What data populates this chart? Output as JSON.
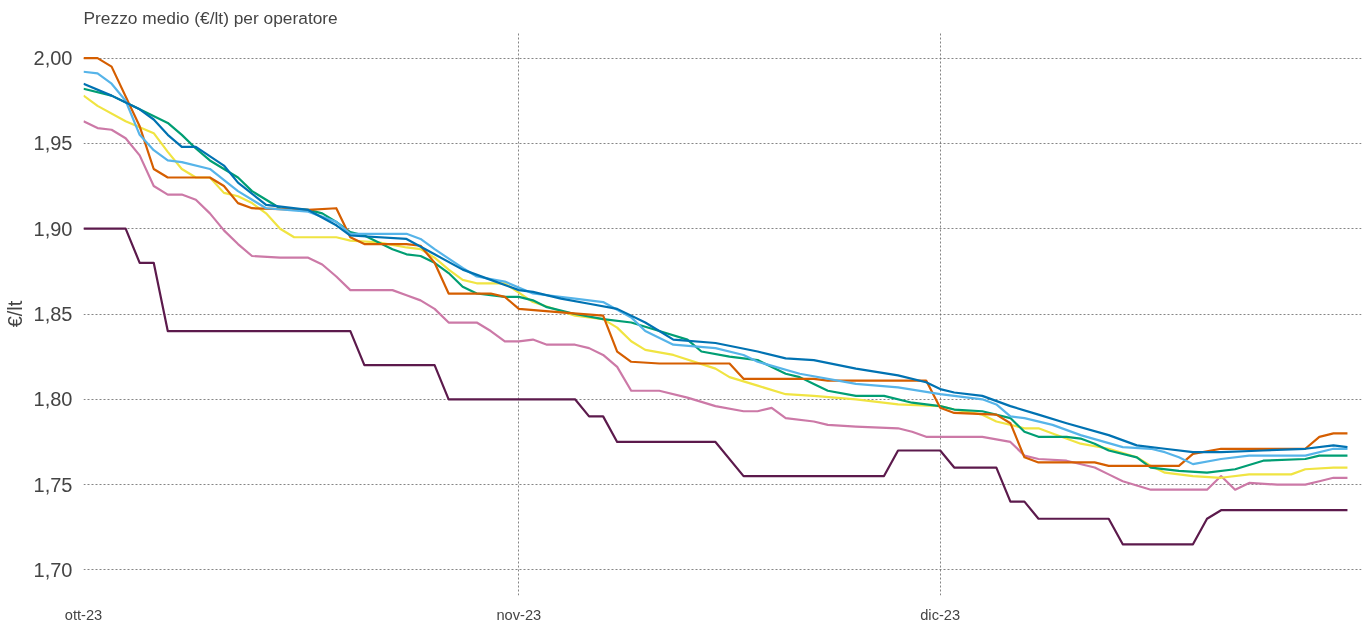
{
  "chart_data": {
    "type": "line",
    "title": "Prezzo medio (€/lt) per operatore",
    "ylabel": "€/lt",
    "xlim": [
      "2023-10-01",
      "2023-12-31"
    ],
    "ylim": [
      1.685,
      2.015
    ],
    "xticks": [
      {
        "value": "2023-10-01",
        "label": "ott-23"
      },
      {
        "value": "2023-11-01",
        "label": "nov-23"
      },
      {
        "value": "2023-12-01",
        "label": "dic-23"
      }
    ],
    "yticks": [
      {
        "value": 1.7,
        "label": "1,70"
      },
      {
        "value": 1.75,
        "label": "1,75"
      },
      {
        "value": 1.8,
        "label": "1,80"
      },
      {
        "value": 1.85,
        "label": "1,85"
      },
      {
        "value": 1.9,
        "label": "1,90"
      },
      {
        "value": 1.95,
        "label": "1,95"
      },
      {
        "value": 2.0,
        "label": "2,00"
      }
    ],
    "grid": true,
    "series": [
      {
        "color": "#5c1a4c",
        "x": [
          "2023-10-01",
          "2023-10-04",
          "2023-10-05",
          "2023-10-06",
          "2023-10-07",
          "2023-10-20",
          "2023-10-21",
          "2023-10-26",
          "2023-10-27",
          "2023-11-05",
          "2023-11-06",
          "2023-11-07",
          "2023-11-08",
          "2023-11-15",
          "2023-11-17",
          "2023-11-27",
          "2023-11-28",
          "2023-12-01",
          "2023-12-02",
          "2023-12-05",
          "2023-12-06",
          "2023-12-07",
          "2023-12-08",
          "2023-12-13",
          "2023-12-14",
          "2023-12-19",
          "2023-12-20",
          "2023-12-21",
          "2023-12-30"
        ],
        "values": [
          1.9,
          1.9,
          1.88,
          1.88,
          1.84,
          1.84,
          1.82,
          1.82,
          1.8,
          1.8,
          1.79,
          1.79,
          1.775,
          1.775,
          1.755,
          1.755,
          1.77,
          1.77,
          1.76,
          1.76,
          1.74,
          1.74,
          1.73,
          1.73,
          1.715,
          1.715,
          1.73,
          1.735,
          1.735
        ]
      },
      {
        "color": "#cc79a7",
        "x": [
          "2023-10-01",
          "2023-10-02",
          "2023-10-03",
          "2023-10-04",
          "2023-10-05",
          "2023-10-06",
          "2023-10-07",
          "2023-10-08",
          "2023-10-09",
          "2023-10-10",
          "2023-10-11",
          "2023-10-12",
          "2023-10-13",
          "2023-10-15",
          "2023-10-17",
          "2023-10-18",
          "2023-10-19",
          "2023-10-20",
          "2023-10-23",
          "2023-10-24",
          "2023-10-25",
          "2023-10-26",
          "2023-10-27",
          "2023-10-29",
          "2023-10-30",
          "2023-10-31",
          "2023-11-01",
          "2023-11-02",
          "2023-11-03",
          "2023-11-05",
          "2023-11-06",
          "2023-11-07",
          "2023-11-08",
          "2023-11-09",
          "2023-11-11",
          "2023-11-13",
          "2023-11-15",
          "2023-11-17",
          "2023-11-18",
          "2023-11-19",
          "2023-11-20",
          "2023-11-22",
          "2023-11-23",
          "2023-11-25",
          "2023-11-28",
          "2023-11-29",
          "2023-11-30",
          "2023-12-04",
          "2023-12-06",
          "2023-12-07",
          "2023-12-08",
          "2023-12-10",
          "2023-12-12",
          "2023-12-13",
          "2023-12-14",
          "2023-12-16",
          "2023-12-18",
          "2023-12-20",
          "2023-12-21",
          "2023-12-22",
          "2023-12-23",
          "2023-12-25",
          "2023-12-27",
          "2023-12-28",
          "2023-12-29",
          "2023-12-30"
        ],
        "values": [
          1.963,
          1.959,
          1.958,
          1.953,
          1.943,
          1.925,
          1.92,
          1.92,
          1.917,
          1.909,
          1.899,
          1.891,
          1.884,
          1.883,
          1.883,
          1.879,
          1.872,
          1.864,
          1.864,
          1.861,
          1.858,
          1.853,
          1.845,
          1.845,
          1.84,
          1.834,
          1.834,
          1.835,
          1.832,
          1.832,
          1.83,
          1.826,
          1.819,
          1.805,
          1.805,
          1.801,
          1.796,
          1.793,
          1.793,
          1.795,
          1.789,
          1.787,
          1.785,
          1.784,
          1.783,
          1.781,
          1.778,
          1.778,
          1.775,
          1.767,
          1.765,
          1.764,
          1.76,
          1.756,
          1.752,
          1.747,
          1.747,
          1.747,
          1.755,
          1.747,
          1.751,
          1.75,
          1.75,
          1.752,
          1.754,
          1.754
        ]
      },
      {
        "color": "#f0e442",
        "x": [
          "2023-10-01",
          "2023-10-02",
          "2023-10-04",
          "2023-10-06",
          "2023-10-07",
          "2023-10-08",
          "2023-10-09",
          "2023-10-10",
          "2023-10-11",
          "2023-10-12",
          "2023-10-13",
          "2023-10-14",
          "2023-10-15",
          "2023-10-16",
          "2023-10-19",
          "2023-10-20",
          "2023-10-22",
          "2023-10-24",
          "2023-10-25",
          "2023-10-26",
          "2023-10-27",
          "2023-10-28",
          "2023-10-29",
          "2023-10-31",
          "2023-11-02",
          "2023-11-05",
          "2023-11-07",
          "2023-11-08",
          "2023-11-09",
          "2023-11-10",
          "2023-11-12",
          "2023-11-15",
          "2023-11-16",
          "2023-11-18",
          "2023-11-20",
          "2023-11-22",
          "2023-11-25",
          "2023-11-28",
          "2023-12-01",
          "2023-12-02",
          "2023-12-04",
          "2023-12-05",
          "2023-12-07",
          "2023-12-08",
          "2023-12-09",
          "2023-12-11",
          "2023-12-13",
          "2023-12-15",
          "2023-12-16",
          "2023-12-17",
          "2023-12-19",
          "2023-12-21",
          "2023-12-23",
          "2023-12-26",
          "2023-12-27",
          "2023-12-29",
          "2023-12-30"
        ],
        "values": [
          1.978,
          1.972,
          1.963,
          1.956,
          1.945,
          1.935,
          1.93,
          1.93,
          1.921,
          1.919,
          1.915,
          1.909,
          1.9,
          1.895,
          1.895,
          1.893,
          1.892,
          1.889,
          1.888,
          1.883,
          1.876,
          1.87,
          1.868,
          1.868,
          1.857,
          1.849,
          1.847,
          1.842,
          1.834,
          1.829,
          1.826,
          1.818,
          1.813,
          1.808,
          1.803,
          1.802,
          1.8,
          1.797,
          1.796,
          1.794,
          1.791,
          1.787,
          1.783,
          1.783,
          1.78,
          1.774,
          1.771,
          1.766,
          1.761,
          1.757,
          1.755,
          1.754,
          1.756,
          1.756,
          1.759,
          1.76,
          1.76
        ]
      },
      {
        "color": "#009e73",
        "x": [
          "2023-10-01",
          "2023-10-03",
          "2023-10-05",
          "2023-10-07",
          "2023-10-08",
          "2023-10-09",
          "2023-10-10",
          "2023-10-12",
          "2023-10-13",
          "2023-10-15",
          "2023-10-17",
          "2023-10-18",
          "2023-10-19",
          "2023-10-20",
          "2023-10-21",
          "2023-10-23",
          "2023-10-24",
          "2023-10-25",
          "2023-10-26",
          "2023-10-27",
          "2023-10-28",
          "2023-10-29",
          "2023-10-31",
          "2023-11-01",
          "2023-11-02",
          "2023-11-03",
          "2023-11-05",
          "2023-11-07",
          "2023-11-09",
          "2023-11-11",
          "2023-11-13",
          "2023-11-14",
          "2023-11-16",
          "2023-11-18",
          "2023-11-20",
          "2023-11-21",
          "2023-11-22",
          "2023-11-23",
          "2023-11-25",
          "2023-11-27",
          "2023-11-29",
          "2023-12-01",
          "2023-12-02",
          "2023-12-04",
          "2023-12-06",
          "2023-12-07",
          "2023-12-08",
          "2023-12-10",
          "2023-12-11",
          "2023-12-12",
          "2023-12-13",
          "2023-12-15",
          "2023-12-16",
          "2023-12-18",
          "2023-12-20",
          "2023-12-22",
          "2023-12-24",
          "2023-12-27",
          "2023-12-28",
          "2023-12-30"
        ],
        "values": [
          1.982,
          1.978,
          1.97,
          1.962,
          1.955,
          1.947,
          1.94,
          1.93,
          1.922,
          1.912,
          1.911,
          1.909,
          1.904,
          1.898,
          1.896,
          1.888,
          1.885,
          1.884,
          1.88,
          1.874,
          1.866,
          1.862,
          1.86,
          1.86,
          1.858,
          1.854,
          1.85,
          1.847,
          1.845,
          1.84,
          1.835,
          1.828,
          1.825,
          1.823,
          1.815,
          1.813,
          1.809,
          1.805,
          1.802,
          1.802,
          1.798,
          1.796,
          1.794,
          1.793,
          1.789,
          1.781,
          1.778,
          1.778,
          1.777,
          1.774,
          1.77,
          1.766,
          1.76,
          1.758,
          1.757,
          1.759,
          1.764,
          1.765,
          1.767,
          1.767
        ]
      },
      {
        "color": "#d55e00",
        "x": [
          "2023-10-01",
          "2023-10-02",
          "2023-10-03",
          "2023-10-05",
          "2023-10-06",
          "2023-10-07",
          "2023-10-10",
          "2023-10-11",
          "2023-10-12",
          "2023-10-13",
          "2023-10-17",
          "2023-10-19",
          "2023-10-20",
          "2023-10-21",
          "2023-10-24",
          "2023-10-25",
          "2023-10-26",
          "2023-10-27",
          "2023-10-30",
          "2023-10-31",
          "2023-11-01",
          "2023-11-04",
          "2023-11-07",
          "2023-11-08",
          "2023-11-09",
          "2023-11-11",
          "2023-11-16",
          "2023-11-17",
          "2023-11-22",
          "2023-11-23",
          "2023-11-30",
          "2023-12-01",
          "2023-12-02",
          "2023-12-05",
          "2023-12-06",
          "2023-12-07",
          "2023-12-08",
          "2023-12-12",
          "2023-12-13",
          "2023-12-18",
          "2023-12-19",
          "2023-12-21",
          "2023-12-27",
          "2023-12-28",
          "2023-12-29",
          "2023-12-30"
        ],
        "values": [
          2.0,
          2.0,
          1.995,
          1.96,
          1.935,
          1.93,
          1.93,
          1.925,
          1.915,
          1.912,
          1.911,
          1.912,
          1.895,
          1.891,
          1.891,
          1.89,
          1.88,
          1.862,
          1.862,
          1.86,
          1.853,
          1.851,
          1.849,
          1.828,
          1.822,
          1.821,
          1.821,
          1.812,
          1.812,
          1.811,
          1.811,
          1.795,
          1.792,
          1.791,
          1.786,
          1.766,
          1.763,
          1.763,
          1.761,
          1.761,
          1.768,
          1.771,
          1.771,
          1.778,
          1.78,
          1.78
        ]
      },
      {
        "color": "#56b4e9",
        "x": [
          "2023-10-01",
          "2023-10-02",
          "2023-10-03",
          "2023-10-04",
          "2023-10-05",
          "2023-10-06",
          "2023-10-07",
          "2023-10-08",
          "2023-10-10",
          "2023-10-12",
          "2023-10-14",
          "2023-10-17",
          "2023-10-19",
          "2023-10-20",
          "2023-10-24",
          "2023-10-25",
          "2023-10-26",
          "2023-10-28",
          "2023-10-29",
          "2023-10-31",
          "2023-11-02",
          "2023-11-05",
          "2023-11-07",
          "2023-11-09",
          "2023-11-10",
          "2023-11-12",
          "2023-11-15",
          "2023-11-17",
          "2023-11-18",
          "2023-11-21",
          "2023-11-25",
          "2023-11-28",
          "2023-12-01",
          "2023-12-02",
          "2023-12-04",
          "2023-12-05",
          "2023-12-06",
          "2023-12-07",
          "2023-12-09",
          "2023-12-11",
          "2023-12-14",
          "2023-12-16",
          "2023-12-17",
          "2023-12-18",
          "2023-12-19",
          "2023-12-21",
          "2023-12-23",
          "2023-12-27",
          "2023-12-29",
          "2023-12-30"
        ],
        "values": [
          1.992,
          1.991,
          1.985,
          1.975,
          1.955,
          1.946,
          1.94,
          1.939,
          1.935,
          1.922,
          1.912,
          1.91,
          1.904,
          1.897,
          1.897,
          1.894,
          1.888,
          1.877,
          1.872,
          1.869,
          1.862,
          1.859,
          1.857,
          1.848,
          1.84,
          1.832,
          1.83,
          1.826,
          1.822,
          1.815,
          1.809,
          1.807,
          1.803,
          1.802,
          1.8,
          1.797,
          1.79,
          1.789,
          1.785,
          1.779,
          1.772,
          1.771,
          1.769,
          1.766,
          1.762,
          1.765,
          1.767,
          1.767,
          1.771,
          1.771
        ]
      },
      {
        "color": "#0072b2",
        "x": [
          "2023-10-01",
          "2023-10-03",
          "2023-10-05",
          "2023-10-06",
          "2023-10-07",
          "2023-10-08",
          "2023-10-09",
          "2023-10-11",
          "2023-10-12",
          "2023-10-14",
          "2023-10-17",
          "2023-10-19",
          "2023-10-20",
          "2023-10-24",
          "2023-10-26",
          "2023-10-28",
          "2023-10-30",
          "2023-11-01",
          "2023-11-02",
          "2023-11-04",
          "2023-11-06",
          "2023-11-08",
          "2023-11-10",
          "2023-11-11",
          "2023-11-12",
          "2023-11-15",
          "2023-11-18",
          "2023-11-20",
          "2023-11-22",
          "2023-11-25",
          "2023-11-28",
          "2023-11-30",
          "2023-12-01",
          "2023-12-02",
          "2023-12-04",
          "2023-12-06",
          "2023-12-08",
          "2023-12-10",
          "2023-12-13",
          "2023-12-15",
          "2023-12-17",
          "2023-12-19",
          "2023-12-21",
          "2023-12-24",
          "2023-12-27",
          "2023-12-29",
          "2023-12-30"
        ],
        "values": [
          1.985,
          1.978,
          1.97,
          1.964,
          1.955,
          1.948,
          1.948,
          1.937,
          1.927,
          1.914,
          1.911,
          1.902,
          1.896,
          1.894,
          1.885,
          1.876,
          1.87,
          1.864,
          1.863,
          1.859,
          1.856,
          1.853,
          1.845,
          1.84,
          1.835,
          1.833,
          1.828,
          1.824,
          1.823,
          1.818,
          1.814,
          1.81,
          1.806,
          1.804,
          1.802,
          1.796,
          1.791,
          1.786,
          1.779,
          1.773,
          1.771,
          1.769,
          1.769,
          1.77,
          1.771,
          1.773,
          1.772
        ]
      }
    ]
  }
}
